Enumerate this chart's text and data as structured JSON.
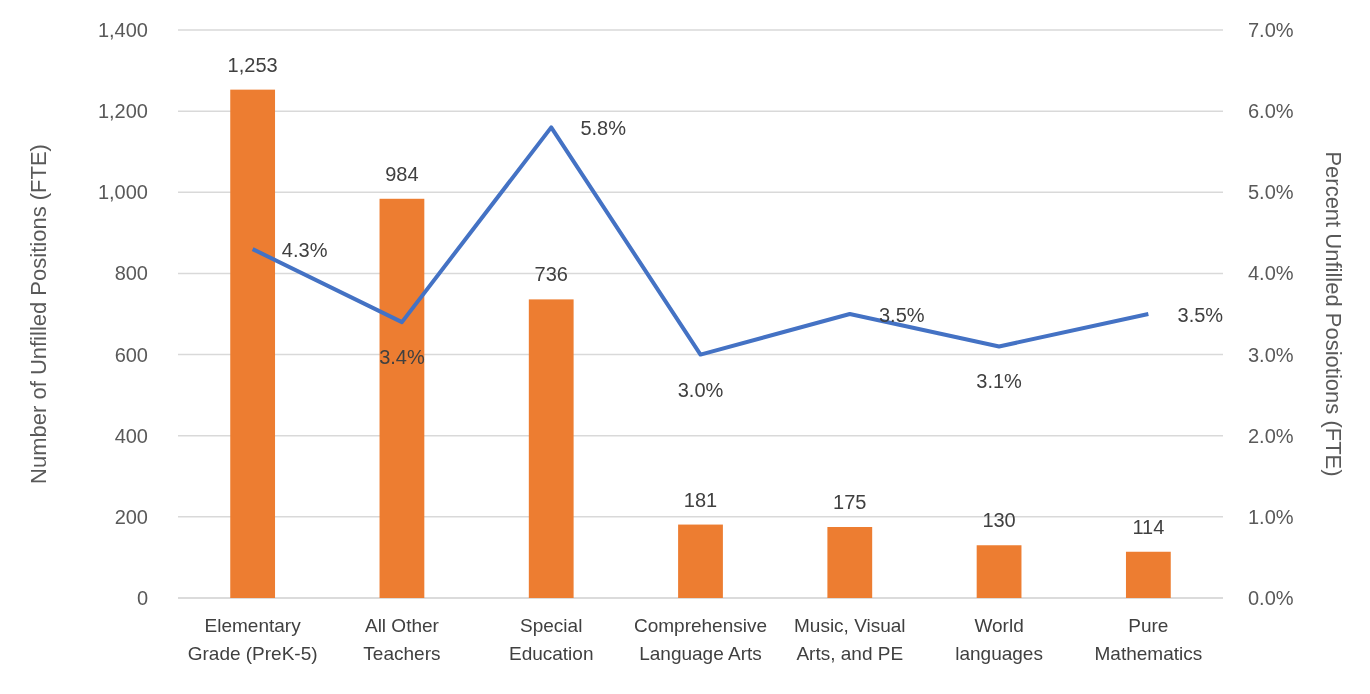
{
  "chart_data": {
    "type": "bar",
    "ylabel": "Number of Unfilled Positions (FTE)",
    "y2label": "Percent Unfilled Posiotions (FTE)",
    "categories": [
      "Elementary\nGrade (PreK-5)",
      "All Other\nTeachers",
      "Special\nEducation",
      "Comprehensive\nLanguage Arts",
      "Music, Visual\nArts, and PE",
      "World\nlanguages",
      "Pure\nMathematics"
    ],
    "series": [
      {
        "color": "#ed7d31",
        "values": [
          1253,
          984,
          736,
          181,
          175,
          130,
          114
        ],
        "value_labels": [
          "1,253",
          "984",
          "736",
          "181",
          "175",
          "130",
          "114"
        ]
      },
      {
        "type": "line",
        "axis": "y2",
        "color": "#4472c4",
        "values": [
          4.3,
          3.4,
          5.8,
          3.0,
          3.5,
          3.1,
          3.5
        ],
        "value_labels": [
          "4.3%",
          "3.4%",
          "5.8%",
          "3.0%",
          "3.5%",
          "3.1%",
          "3.5%"
        ]
      }
    ],
    "ylim": [
      0,
      1400
    ],
    "yticks": [
      {
        "value": 0,
        "label": "0"
      },
      {
        "value": 200,
        "label": "200"
      },
      {
        "value": 400,
        "label": "400"
      },
      {
        "value": 600,
        "label": "600"
      },
      {
        "value": 800,
        "label": "800"
      },
      {
        "value": 1000,
        "label": "1,000"
      },
      {
        "value": 1200,
        "label": "1,200"
      },
      {
        "value": 1400,
        "label": "1,400"
      }
    ],
    "y2lim": [
      0,
      7
    ],
    "y2ticks": [
      {
        "value": 0,
        "label": "0.0%"
      },
      {
        "value": 1,
        "label": "1.0%"
      },
      {
        "value": 2,
        "label": "2.0%"
      },
      {
        "value": 3,
        "label": "3.0%"
      },
      {
        "value": 4,
        "label": "4.0%"
      },
      {
        "value": 5,
        "label": "5.0%"
      },
      {
        "value": 6,
        "label": "6.0%"
      },
      {
        "value": 7,
        "label": "7.0%"
      }
    ],
    "grid": "y",
    "marker": "none",
    "line_style": "solid"
  }
}
